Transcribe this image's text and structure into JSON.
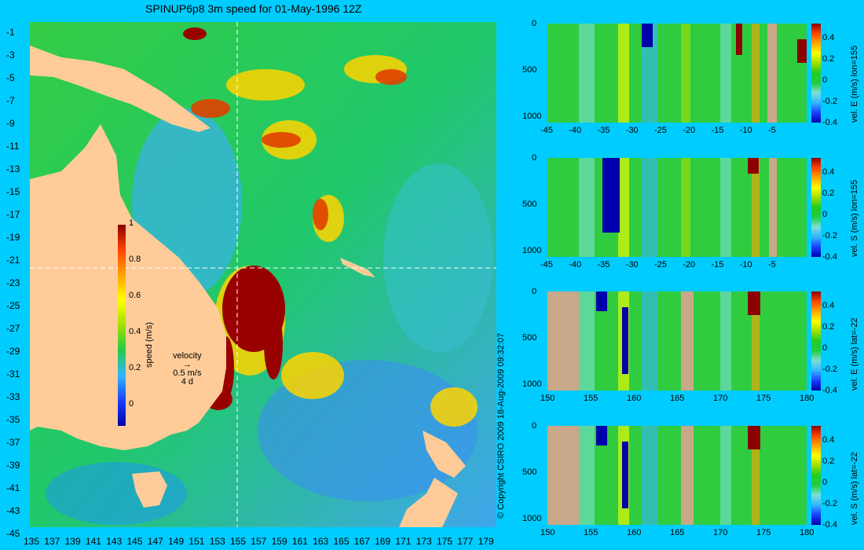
{
  "title": "SPINUP6p8 3m speed for 01-May-1996 12Z",
  "copyright": "© Copyright CSIRO 2009  18-Aug-2009 09:32:07",
  "colors": {
    "background": "#00ccff",
    "land": "#ffcc99",
    "mask": "#c8a888"
  },
  "map": {
    "chart_data": {
      "type": "heatmap",
      "xlim": [
        135,
        180
      ],
      "ylim": [
        -45,
        0
      ],
      "xticks": [
        "135",
        "137",
        "139",
        "141",
        "143",
        "145",
        "147",
        "149",
        "151",
        "153",
        "155",
        "157",
        "159",
        "161",
        "163",
        "165",
        "167",
        "169",
        "171",
        "173",
        "175",
        "177",
        "179"
      ],
      "yticks": [
        "-1",
        "-3",
        "-5",
        "-7",
        "-9",
        "-11",
        "-13",
        "-15",
        "-17",
        "-19",
        "-21",
        "-23",
        "-25",
        "-27",
        "-29",
        "-31",
        "-33",
        "-35",
        "-37",
        "-39",
        "-41",
        "-43",
        "-45"
      ],
      "colorbar": {
        "label": "speed (m/s)",
        "range": [
          -0.1,
          1
        ],
        "ticks": [
          "0",
          "0.2",
          "0.4",
          "0.6",
          "0.8",
          "1"
        ]
      },
      "crosshair": {
        "lon": 155,
        "lat": -22
      }
    },
    "legend": {
      "title": "velocity",
      "scale": "0.5 m/s",
      "time": "4 d"
    }
  },
  "panels": [
    {
      "chart_data": {
        "type": "heatmap",
        "ylabel": "vel. E (m/s) lon=155",
        "xlim": [
          -46,
          0
        ],
        "ylim": [
          1050,
          0
        ],
        "xticks": [
          "-45",
          "-40",
          "-35",
          "-30",
          "-25",
          "-20",
          "-15",
          "-10",
          "-5"
        ],
        "yticks": [
          "0",
          "500",
          "1000"
        ],
        "colorbar": {
          "range": [
            -0.4,
            0.5
          ],
          "ticks": [
            "0.4",
            "0.2",
            "0",
            "-0.2",
            "-0.4"
          ]
        }
      }
    },
    {
      "chart_data": {
        "type": "heatmap",
        "ylabel": "vel. S (m/s) lon=155",
        "xlim": [
          -46,
          0
        ],
        "ylim": [
          1050,
          0
        ],
        "xticks": [
          "-45",
          "-40",
          "-35",
          "-30",
          "-25",
          "-20",
          "-15",
          "-10",
          "-5"
        ],
        "yticks": [
          "0",
          "500",
          "1000"
        ],
        "colorbar": {
          "range": [
            -0.4,
            0.5
          ],
          "ticks": [
            "0.4",
            "0.2",
            "0",
            "-0.2",
            "-0.4"
          ]
        }
      }
    },
    {
      "chart_data": {
        "type": "heatmap",
        "ylabel": "vel. E (m/s) lat=-22",
        "xlim": [
          150,
          180
        ],
        "ylim": [
          1050,
          0
        ],
        "xticks": [
          "150",
          "155",
          "160",
          "165",
          "170",
          "175",
          "180"
        ],
        "yticks": [
          "0",
          "500",
          "1000"
        ],
        "colorbar": {
          "range": [
            -0.4,
            0.5
          ],
          "ticks": [
            "0.4",
            "0.2",
            "0",
            "-0.2",
            "-0.4"
          ]
        }
      }
    },
    {
      "chart_data": {
        "type": "heatmap",
        "ylabel": "vel. S (m/s) lat=-22",
        "xlim": [
          150,
          180
        ],
        "ylim": [
          1050,
          0
        ],
        "xticks": [
          "150",
          "155",
          "160",
          "165",
          "170",
          "175",
          "180"
        ],
        "yticks": [
          "0",
          "500",
          "1000"
        ],
        "colorbar": {
          "range": [
            -0.4,
            0.5
          ],
          "ticks": [
            "0.4",
            "0.2",
            "0",
            "-0.2",
            "-0.4"
          ]
        }
      }
    }
  ]
}
